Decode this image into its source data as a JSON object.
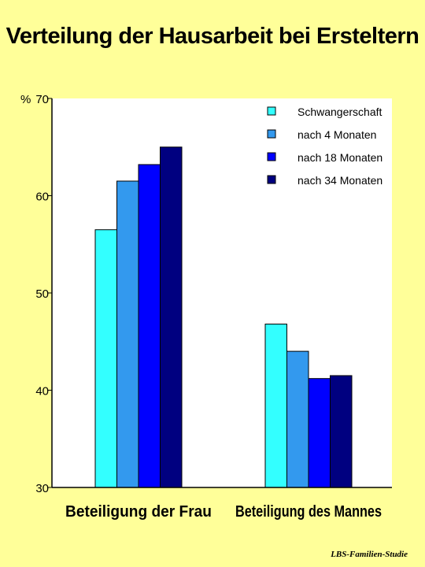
{
  "title": "Verteilung der Hausarbeit bei Ersteltern",
  "footer": "LBS-Familien-Studie",
  "chart_data": {
    "type": "bar",
    "unit_label": "%",
    "categories": [
      "Beteiligung der Frau",
      "Beteiligung des Mannes"
    ],
    "ylim": [
      30,
      70
    ],
    "yticks": [
      30,
      40,
      50,
      60,
      70
    ],
    "grid": false,
    "legend_position": "top-right",
    "series": [
      {
        "name": "Schwangerschaft",
        "color": "#33ffff",
        "values": [
          56.5,
          46.8
        ]
      },
      {
        "name": "nach 4 Monaten",
        "color": "#3399ee",
        "values": [
          61.5,
          44.0
        ]
      },
      {
        "name": "nach 18 Monaten",
        "color": "#0000ff",
        "values": [
          63.2,
          41.2
        ]
      },
      {
        "name": "nach 34 Monaten",
        "color": "#000080",
        "values": [
          65.0,
          41.5
        ]
      }
    ]
  }
}
